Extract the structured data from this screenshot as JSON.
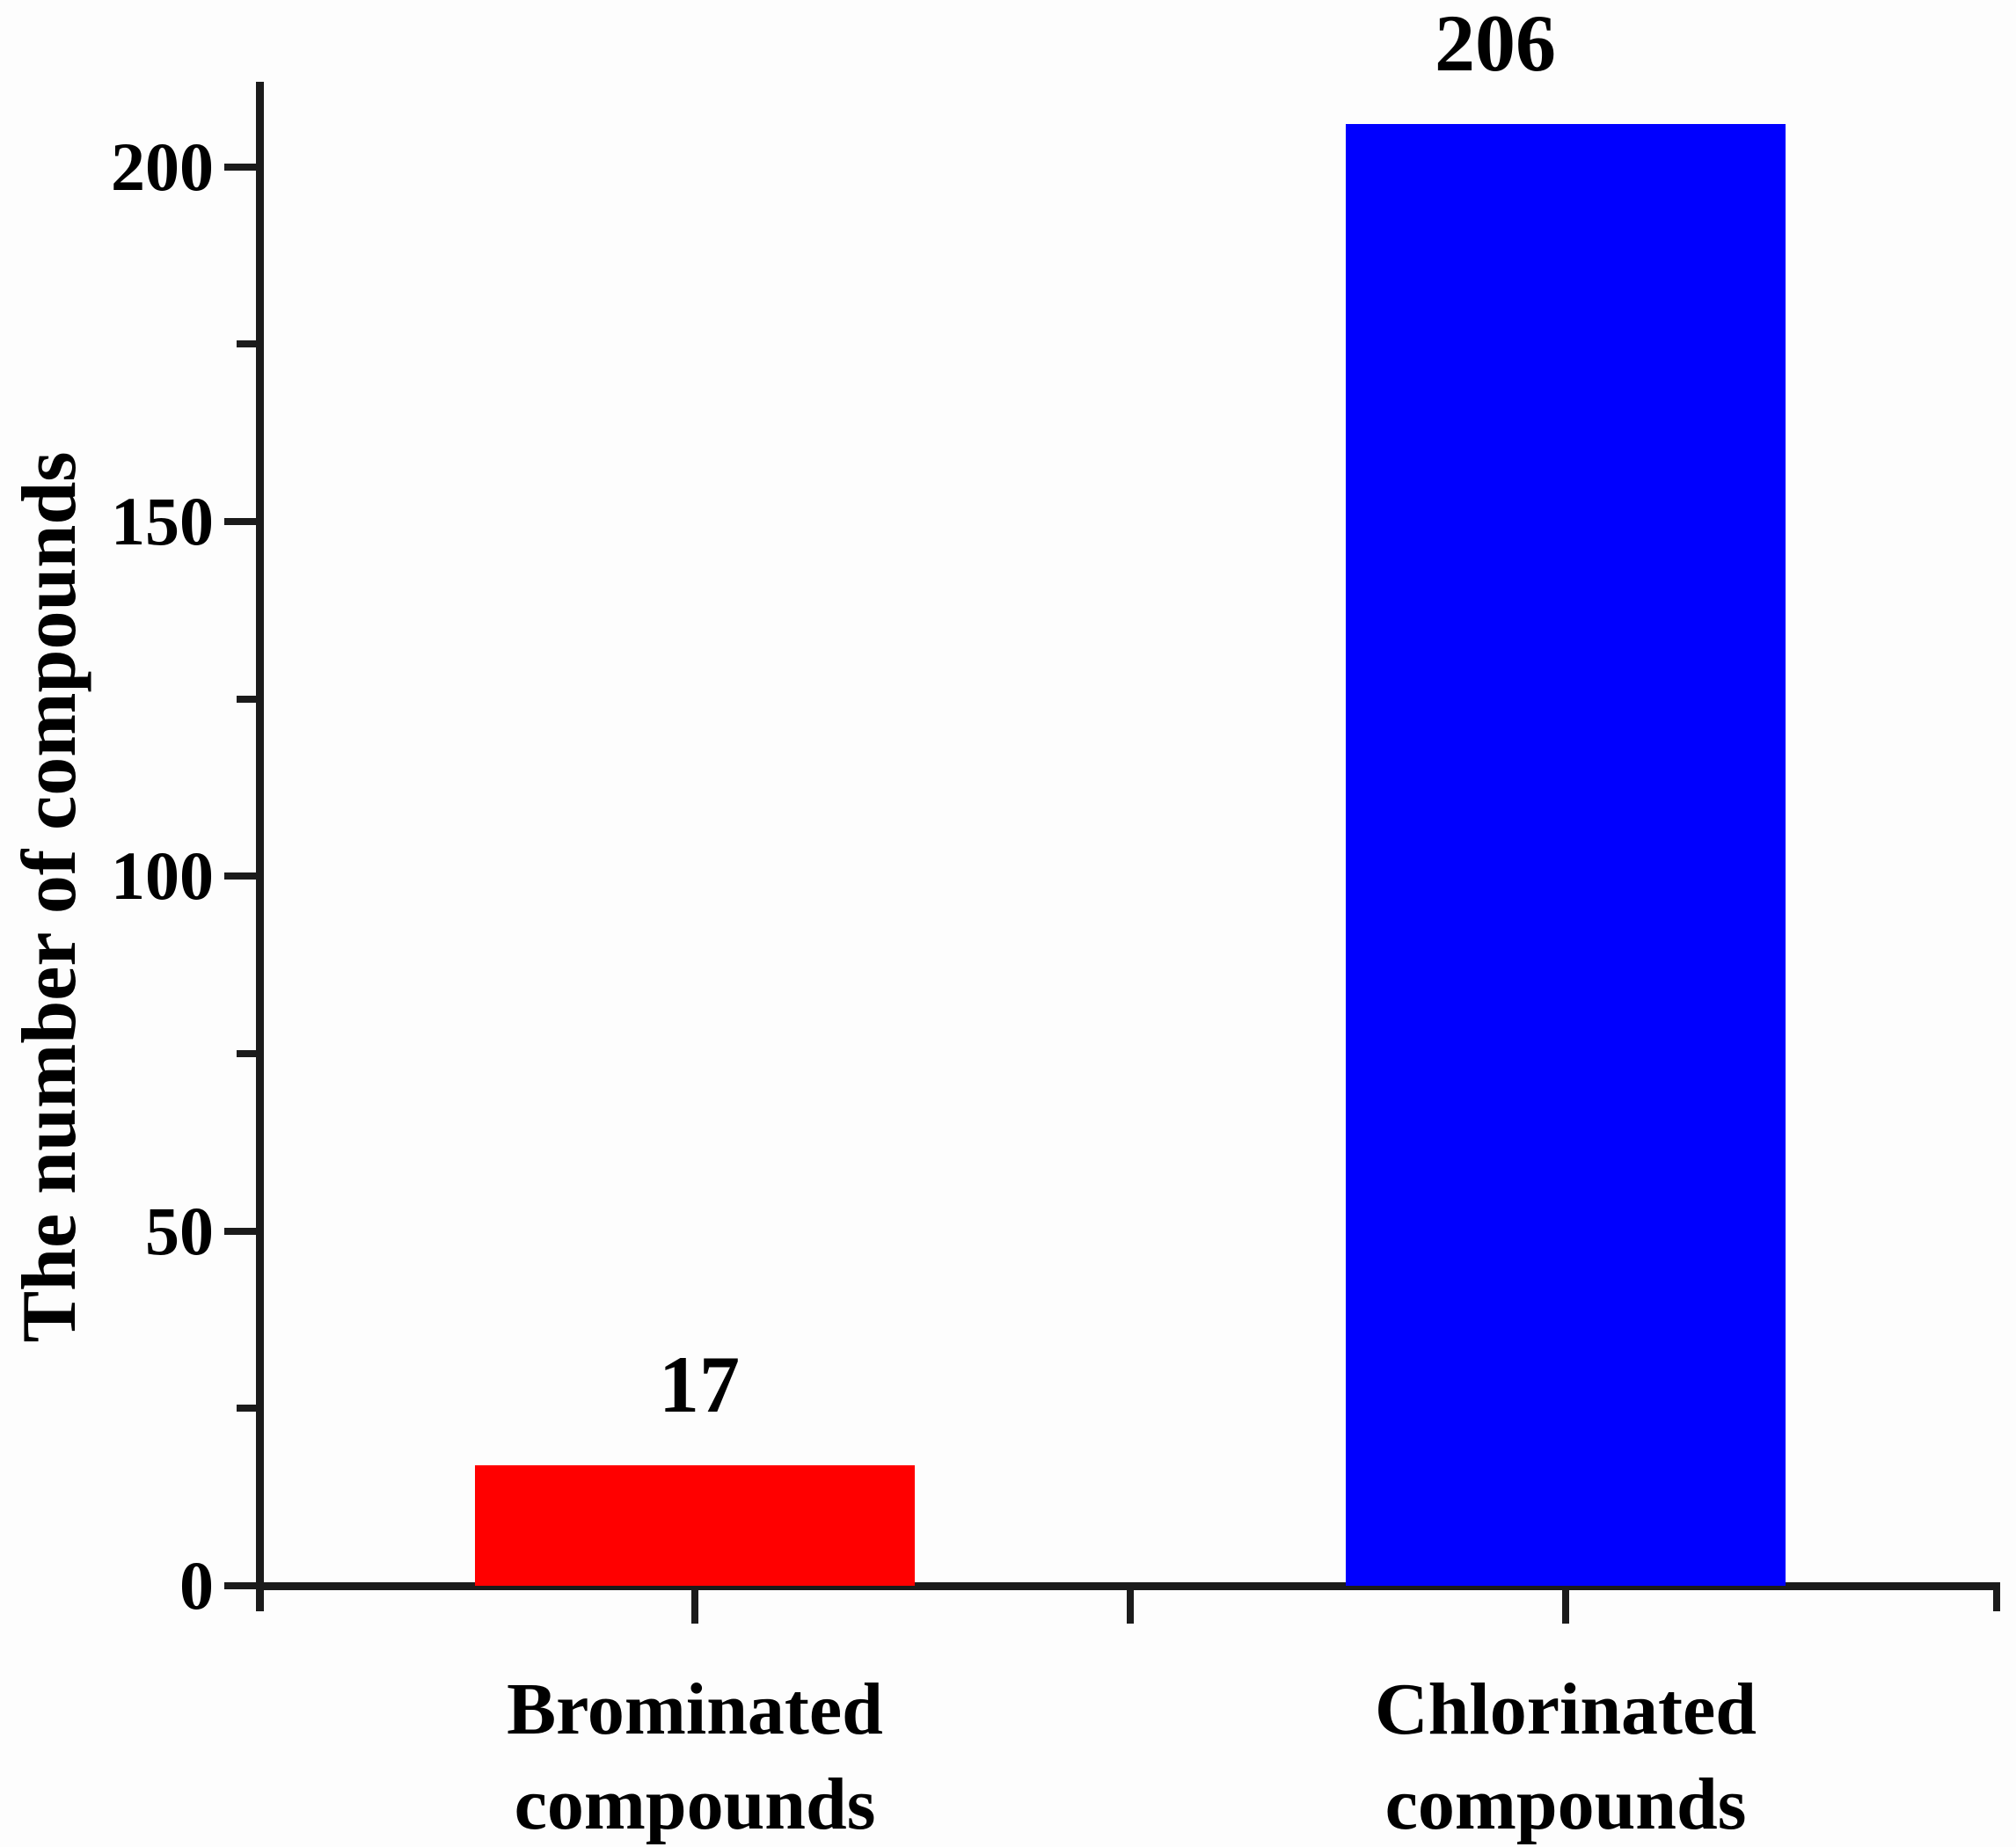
{
  "chart_data": {
    "type": "bar",
    "title": "",
    "xlabel": "",
    "ylabel": "The number of compounds",
    "categories": [
      {
        "line1": "Brominated",
        "line2": "compounds"
      },
      {
        "line1": "Chlorinated",
        "line2": "compounds"
      }
    ],
    "values": [
      17,
      206
    ],
    "data_labels": [
      "17",
      "206"
    ],
    "bar_colors": [
      "#ff0000",
      "#0000ff"
    ],
    "y_ticks": [
      0,
      50,
      100,
      150,
      200
    ],
    "y_minor_ticks": [
      25,
      75,
      125,
      175
    ],
    "ylim": [
      0,
      212
    ],
    "grid": false,
    "legend": false,
    "axis_color": "#1b1b1b",
    "text_color": "#000000"
  }
}
